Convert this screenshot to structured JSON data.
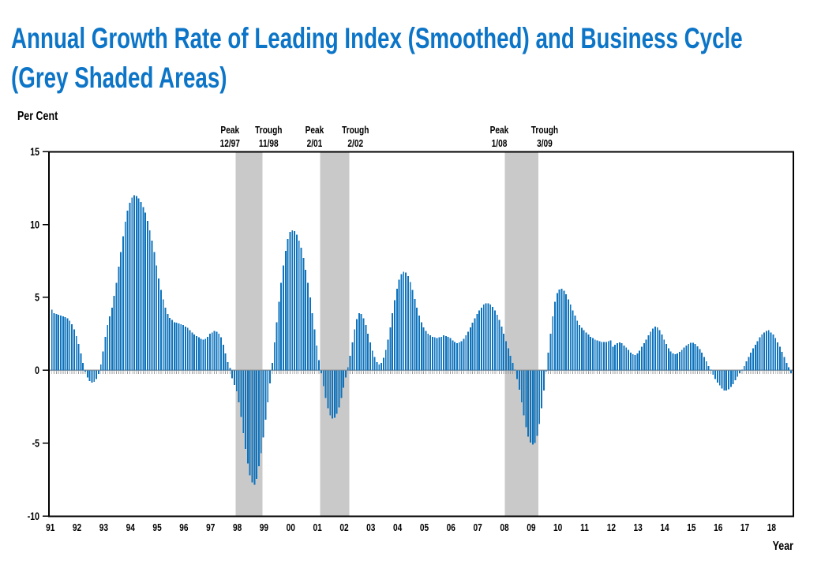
{
  "title": {
    "line1": "Annual Growth Rate of Leading Index (Smoothed) and Business Cycle",
    "line2": "(Grey Shaded Areas)",
    "color": "#0C75C7"
  },
  "chart_data": {
    "type": "bar",
    "title": "Annual Growth Rate of Leading Index (Smoothed) and Business Cycle (Grey Shaded Areas)",
    "ylabel": "Per Cent",
    "xlabel": "Year",
    "ylim": [
      -10,
      15
    ],
    "yticks": [
      15,
      10,
      5,
      0,
      -5,
      -10
    ],
    "x_year_labels": [
      "91",
      "92",
      "93",
      "94",
      "95",
      "96",
      "97",
      "98",
      "99",
      "00",
      "01",
      "02",
      "03",
      "04",
      "05",
      "06",
      "07",
      "08",
      "09",
      "10",
      "11",
      "12",
      "13",
      "14",
      "15",
      "16",
      "17",
      "18"
    ],
    "frequency": "monthly",
    "start": "1991-01",
    "end": "2018-10",
    "bar_color": "#0E73BC",
    "recession_band_color": "#C9C9C9",
    "zero_line_color": "#999999",
    "axis_color": "#000000",
    "series": [
      {
        "year": 1991,
        "values": [
          4.15,
          3.9,
          3.85,
          3.8,
          3.75,
          3.7,
          3.65,
          3.55,
          3.4,
          3.15,
          2.8,
          2.35
        ]
      },
      {
        "year": 1992,
        "values": [
          1.8,
          1.15,
          0.5,
          -0.1,
          -0.5,
          -0.75,
          -0.85,
          -0.8,
          -0.6,
          -0.25,
          0.4,
          1.3
        ]
      },
      {
        "year": 1993,
        "values": [
          2.3,
          3.1,
          3.7,
          4.3,
          5.1,
          6.0,
          7.1,
          8.1,
          9.2,
          10.2,
          10.95,
          11.5
        ]
      },
      {
        "year": 1994,
        "values": [
          11.85,
          12.0,
          11.95,
          11.8,
          11.55,
          11.2,
          10.8,
          10.25,
          9.6,
          8.9,
          8.1,
          7.2
        ]
      },
      {
        "year": 1995,
        "values": [
          6.3,
          5.5,
          4.85,
          4.3,
          3.85,
          3.6,
          3.45,
          3.3,
          3.25,
          3.2,
          3.15,
          3.1
        ]
      },
      {
        "year": 1996,
        "values": [
          3.0,
          2.9,
          2.75,
          2.6,
          2.45,
          2.35,
          2.25,
          2.15,
          2.1,
          2.15,
          2.3,
          2.5
        ]
      },
      {
        "year": 1997,
        "values": [
          2.6,
          2.7,
          2.65,
          2.5,
          2.25,
          1.75,
          1.15,
          0.55,
          0.15,
          -0.55,
          -1.0,
          -1.45
        ]
      },
      {
        "year": 1998,
        "values": [
          -2.2,
          -3.2,
          -4.3,
          -5.4,
          -6.4,
          -7.2,
          -7.7,
          -7.85,
          -7.45,
          -6.6,
          -5.7,
          -4.6
        ]
      },
      {
        "year": 1999,
        "values": [
          -3.4,
          -2.2,
          -0.9,
          0.5,
          1.9,
          3.3,
          4.7,
          6.0,
          7.2,
          8.2,
          9.0,
          9.5
        ]
      },
      {
        "year": 2000,
        "values": [
          9.6,
          9.55,
          9.3,
          8.9,
          8.4,
          7.7,
          6.9,
          6.0,
          5.0,
          3.9,
          2.8,
          1.7
        ]
      },
      {
        "year": 2001,
        "values": [
          0.7,
          -0.2,
          -1.1,
          -1.9,
          -2.6,
          -3.1,
          -3.3,
          -3.25,
          -3.0,
          -2.55,
          -1.9,
          -1.2
        ]
      },
      {
        "year": 2002,
        "values": [
          -0.5,
          0.2,
          1.0,
          1.9,
          2.8,
          3.5,
          3.9,
          3.85,
          3.55,
          3.1,
          2.5,
          1.9
        ]
      },
      {
        "year": 2003,
        "values": [
          1.35,
          0.9,
          0.55,
          0.4,
          0.5,
          0.85,
          1.4,
          2.1,
          2.95,
          3.9,
          4.8,
          5.6
        ]
      },
      {
        "year": 2004,
        "values": [
          6.2,
          6.6,
          6.75,
          6.7,
          6.45,
          6.05,
          5.5,
          4.9,
          4.3,
          3.75,
          3.3,
          2.95
        ]
      },
      {
        "year": 2005,
        "values": [
          2.7,
          2.5,
          2.4,
          2.3,
          2.25,
          2.2,
          2.25,
          2.3,
          2.4,
          2.35,
          2.3,
          2.2
        ]
      },
      {
        "year": 2006,
        "values": [
          2.05,
          1.95,
          1.85,
          1.9,
          2.0,
          2.15,
          2.4,
          2.65,
          2.95,
          3.25,
          3.55,
          3.85
        ]
      },
      {
        "year": 2007,
        "values": [
          4.1,
          4.3,
          4.5,
          4.6,
          4.6,
          4.5,
          4.35,
          4.1,
          3.8,
          3.45,
          3.0,
          2.5
        ]
      },
      {
        "year": 2008,
        "values": [
          2.0,
          1.5,
          1.0,
          0.5,
          0.0,
          -0.6,
          -1.35,
          -2.2,
          -3.1,
          -3.9,
          -4.55,
          -4.95
        ]
      },
      {
        "year": 2009,
        "values": [
          -5.1,
          -5.0,
          -4.5,
          -3.7,
          -2.6,
          -1.4,
          -0.1,
          1.2,
          2.5,
          3.7,
          4.7,
          5.3
        ]
      },
      {
        "year": 2010,
        "values": [
          5.55,
          5.6,
          5.45,
          5.2,
          4.85,
          4.5,
          4.1,
          3.75,
          3.4,
          3.1,
          2.9,
          2.75
        ]
      },
      {
        "year": 2011,
        "values": [
          2.6,
          2.45,
          2.3,
          2.2,
          2.1,
          2.05,
          2.0,
          1.95,
          1.95,
          1.95,
          2.0,
          2.05
        ]
      },
      {
        "year": 2012,
        "values": [
          1.6,
          1.75,
          1.85,
          1.9,
          1.85,
          1.7,
          1.55,
          1.4,
          1.2,
          1.1,
          1.05,
          1.15
        ]
      },
      {
        "year": 2013,
        "values": [
          1.35,
          1.6,
          1.85,
          2.1,
          2.4,
          2.65,
          2.85,
          3.0,
          2.95,
          2.75,
          2.45,
          2.1
        ]
      },
      {
        "year": 2014,
        "values": [
          1.8,
          1.5,
          1.3,
          1.15,
          1.1,
          1.15,
          1.25,
          1.4,
          1.55,
          1.7,
          1.8,
          1.87
        ]
      },
      {
        "year": 2015,
        "values": [
          1.87,
          1.8,
          1.65,
          1.45,
          1.2,
          0.9,
          0.6,
          0.3,
          0.0,
          -0.3,
          -0.6,
          -0.85
        ]
      },
      {
        "year": 2016,
        "values": [
          -1.05,
          -1.25,
          -1.38,
          -1.38,
          -1.3,
          -1.15,
          -0.95,
          -0.7,
          -0.45,
          -0.2,
          0.05,
          0.3
        ]
      },
      {
        "year": 2017,
        "values": [
          0.6,
          0.9,
          1.2,
          1.5,
          1.75,
          2.0,
          2.25,
          2.45,
          2.6,
          2.7,
          2.75,
          2.6
        ]
      },
      {
        "year": 2018,
        "values": [
          2.45,
          2.2,
          1.9,
          1.6,
          1.25,
          0.9,
          0.5,
          0.2,
          -0.2,
          -0.65
        ]
      }
    ],
    "recessions": [
      {
        "peak_label": "Peak",
        "peak_date": "12/97",
        "trough_label": "Trough",
        "trough_date": "11/98",
        "start_index": 83,
        "end_index": 94
      },
      {
        "peak_label": "Peak",
        "peak_date": "2/01",
        "trough_label": "Trough",
        "trough_date": "2/02",
        "start_index": 121,
        "end_index": 133
      },
      {
        "peak_label": "Peak",
        "peak_date": "1/08",
        "trough_label": "Trough",
        "trough_date": "3/09",
        "start_index": 204,
        "end_index": 218
      }
    ],
    "legend": null,
    "grid": false
  }
}
